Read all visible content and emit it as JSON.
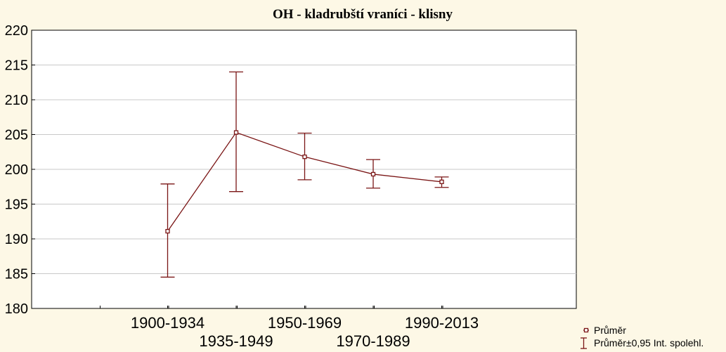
{
  "chart_data": {
    "type": "line",
    "title": "OH - kladrubští vraníci - klisny",
    "xlabel": "",
    "ylabel": "",
    "categories": [
      "1900-1934",
      "1935-1949",
      "1950-1969",
      "1970-1989",
      "1990-2013"
    ],
    "ylim": [
      180,
      220
    ],
    "yticks": [
      180,
      185,
      190,
      195,
      200,
      205,
      210,
      215,
      220
    ],
    "grid": true,
    "series": [
      {
        "name": "Průměr",
        "values": [
          191.1,
          205.3,
          201.8,
          199.3,
          198.2
        ],
        "ci_lower": [
          184.5,
          196.8,
          198.5,
          197.3,
          197.4
        ],
        "ci_upper": [
          197.9,
          214.0,
          205.2,
          201.4,
          198.9
        ]
      }
    ],
    "legend": {
      "position": "bottom-right",
      "entries": [
        "Průměr",
        "Průměr±0,95 Int. spolehl."
      ]
    },
    "colors": {
      "series": "#7a1515",
      "grid": "#c8c8c8",
      "background": "#fdf8e6",
      "plot_background": "#ffffff"
    }
  }
}
